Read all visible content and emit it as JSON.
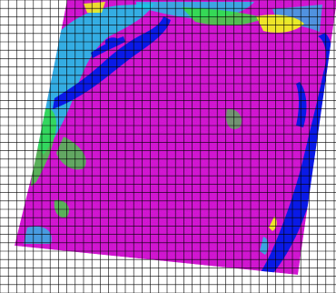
{
  "map": {
    "type": "classified-satellite-image-with-grid-overlay",
    "classes": [
      {
        "name": "class-vegetation-magenta",
        "color": "#d91ad9"
      },
      {
        "name": "class-water-blue",
        "color": "#0a1ae6"
      },
      {
        "name": "class-cyan",
        "color": "#19c8e6"
      },
      {
        "name": "class-green",
        "color": "#33e633"
      },
      {
        "name": "class-yellow",
        "color": "#f0f020"
      }
    ],
    "grid": {
      "line_color": "#000000",
      "background_color": "#ffffff"
    }
  }
}
